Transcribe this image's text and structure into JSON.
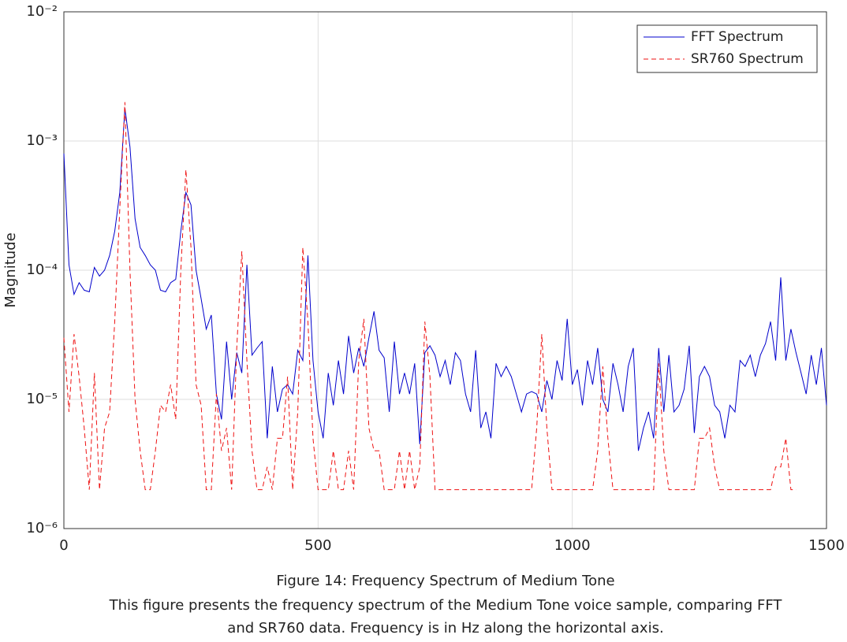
{
  "chart_data": {
    "type": "line",
    "ylabel": "Magnitude",
    "caption": "Figure 14: Frequency Spectrum of Medium Tone",
    "description": [
      "This figure presents the frequency spectrum of the Medium Tone voice sample, comparing FFT",
      "and SR760 data. Frequency is in Hz along the horizontal axis."
    ],
    "xlim": [
      0,
      1500
    ],
    "xticks": [
      0,
      500,
      1000,
      1500
    ],
    "ylim": [
      1e-06,
      0.01
    ],
    "yscale": "log",
    "yticks": [
      {
        "value": 1e-06,
        "label": "10⁻⁶"
      },
      {
        "value": 1e-05,
        "label": "10⁻⁵"
      },
      {
        "value": 0.0001,
        "label": "10⁻⁴"
      },
      {
        "value": 0.001,
        "label": "10⁻³"
      },
      {
        "value": 0.01,
        "label": "10⁻²"
      }
    ],
    "grid": true,
    "legend": "upper right",
    "x": [
      0,
      10,
      20,
      30,
      40,
      50,
      60,
      70,
      80,
      90,
      100,
      110,
      120,
      130,
      140,
      150,
      160,
      170,
      180,
      190,
      200,
      210,
      220,
      230,
      240,
      250,
      260,
      270,
      280,
      290,
      300,
      310,
      320,
      330,
      340,
      350,
      360,
      370,
      380,
      390,
      400,
      410,
      420,
      430,
      440,
      450,
      460,
      470,
      480,
      490,
      500,
      510,
      520,
      530,
      540,
      550,
      560,
      570,
      580,
      590,
      600,
      610,
      620,
      630,
      640,
      650,
      660,
      670,
      680,
      690,
      700,
      710,
      720,
      730,
      740,
      750,
      760,
      770,
      780,
      790,
      800,
      810,
      820,
      830,
      840,
      850,
      860,
      870,
      880,
      890,
      900,
      910,
      920,
      930,
      940,
      950,
      960,
      970,
      980,
      990,
      1000,
      1010,
      1020,
      1030,
      1040,
      1050,
      1060,
      1070,
      1080,
      1090,
      1100,
      1110,
      1120,
      1130,
      1140,
      1150,
      1160,
      1170,
      1180,
      1190,
      1200,
      1210,
      1220,
      1230,
      1240,
      1250,
      1260,
      1270,
      1280,
      1290,
      1300,
      1310,
      1320,
      1330,
      1340,
      1350,
      1360,
      1370,
      1380,
      1390,
      1400,
      1410,
      1420,
      1430,
      1440,
      1450,
      1460,
      1470,
      1480,
      1490,
      1500
    ],
    "series": [
      {
        "name": "FFT Spectrum",
        "color": "#0000cc",
        "dashed": false,
        "values": [
          0.0008,
          0.00011,
          6.5e-05,
          8e-05,
          7e-05,
          6.8e-05,
          0.000105,
          9e-05,
          0.0001,
          0.00013,
          0.0002,
          0.0004,
          0.0018,
          0.0009,
          0.00025,
          0.00015,
          0.00013,
          0.00011,
          0.0001,
          7e-05,
          6.8e-05,
          8e-05,
          8.5e-05,
          0.0002,
          0.0004,
          0.00032,
          0.0001,
          6e-05,
          3.5e-05,
          4.5e-05,
          1.1e-05,
          7e-06,
          2.8e-05,
          1e-05,
          2.3e-05,
          1.6e-05,
          0.00011,
          2.2e-05,
          2.5e-05,
          2.8e-05,
          5e-06,
          1.8e-05,
          8e-06,
          1.2e-05,
          1.3e-05,
          1.1e-05,
          2.4e-05,
          2e-05,
          0.00013,
          2e-05,
          8e-06,
          5e-06,
          1.6e-05,
          9e-06,
          2e-05,
          1.1e-05,
          3.1e-05,
          1.6e-05,
          2.5e-05,
          1.8e-05,
          3e-05,
          4.8e-05,
          2.4e-05,
          2.1e-05,
          8e-06,
          2.8e-05,
          1.1e-05,
          1.6e-05,
          1.1e-05,
          1.9e-05,
          4.5e-06,
          2.3e-05,
          2.6e-05,
          2.2e-05,
          1.5e-05,
          2e-05,
          1.3e-05,
          2.3e-05,
          2e-05,
          1.1e-05,
          8e-06,
          2.4e-05,
          6e-06,
          8e-06,
          5e-06,
          1.9e-05,
          1.5e-05,
          1.8e-05,
          1.5e-05,
          1.1e-05,
          8e-06,
          1.1e-05,
          1.15e-05,
          1.1e-05,
          8e-06,
          1.4e-05,
          1e-05,
          2e-05,
          1.4e-05,
          4.2e-05,
          1.3e-05,
          1.7e-05,
          9e-06,
          2e-05,
          1.3e-05,
          2.5e-05,
          1e-05,
          8e-06,
          1.9e-05,
          1.3e-05,
          8e-06,
          1.8e-05,
          2.5e-05,
          4e-06,
          6e-06,
          8e-06,
          5e-06,
          2.5e-05,
          8e-06,
          2.2e-05,
          8e-06,
          9e-06,
          1.2e-05,
          2.6e-05,
          5.5e-06,
          1.5e-05,
          1.8e-05,
          1.5e-05,
          9e-06,
          8e-06,
          5e-06,
          9e-06,
          8e-06,
          2e-05,
          1.8e-05,
          2.2e-05,
          1.5e-05,
          2.2e-05,
          2.7e-05,
          4e-05,
          2e-05,
          8.8e-05,
          2e-05,
          3.5e-05,
          2.3e-05,
          1.6e-05,
          1.1e-05,
          2.2e-05,
          1.3e-05,
          2.5e-05,
          9e-06
        ]
      },
      {
        "name": "SR760 Spectrum",
        "color": "#ee1111",
        "dashed": true,
        "values": [
          3e-05,
          8e-06,
          3.2e-05,
          1.5e-05,
          6e-06,
          2e-06,
          1.6e-05,
          2e-06,
          6e-06,
          8e-06,
          4e-05,
          0.0003,
          0.002,
          0.0001,
          1e-05,
          4e-06,
          2e-06,
          2e-06,
          4e-06,
          9e-06,
          8e-06,
          1.3e-05,
          7e-06,
          0.0001,
          0.0006,
          0.00015,
          1.3e-05,
          9e-06,
          2e-06,
          2e-06,
          1.1e-05,
          4e-06,
          6e-06,
          2e-06,
          2.5e-05,
          0.00014,
          2e-05,
          4e-06,
          2e-06,
          2e-06,
          3e-06,
          2e-06,
          5e-06,
          5e-06,
          1.5e-05,
          2e-06,
          8e-06,
          0.00015,
          4e-05,
          5e-06,
          2e-06,
          2e-06,
          2e-06,
          4e-06,
          2e-06,
          2e-06,
          4e-06,
          2e-06,
          2e-05,
          4.2e-05,
          6e-06,
          4e-06,
          4e-06,
          2e-06,
          2e-06,
          2e-06,
          4e-06,
          2e-06,
          4e-06,
          2e-06,
          3e-06,
          4e-05,
          1.5e-05,
          2e-06,
          2e-06,
          2e-06,
          2e-06,
          2e-06,
          2e-06,
          2e-06,
          2e-06,
          2e-06,
          2e-06,
          2e-06,
          2e-06,
          2e-06,
          2e-06,
          2e-06,
          2e-06,
          2e-06,
          2e-06,
          2e-06,
          2e-06,
          6e-06,
          3.2e-05,
          6e-06,
          2e-06,
          2e-06,
          2e-06,
          2e-06,
          2e-06,
          2e-06,
          2e-06,
          2e-06,
          2e-06,
          4e-06,
          1.8e-05,
          5e-06,
          2e-06,
          2e-06,
          2e-06,
          2e-06,
          2e-06,
          2e-06,
          2e-06,
          2e-06,
          2e-06,
          1.9e-05,
          4e-06,
          2e-06,
          2e-06,
          2e-06,
          2e-06,
          2e-06,
          2e-06,
          5e-06,
          5e-06,
          6e-06,
          3e-06,
          2e-06,
          2e-06,
          2e-06,
          2e-06,
          2e-06,
          2e-06,
          2e-06,
          2e-06,
          2e-06,
          2e-06,
          2e-06,
          3e-06,
          3e-06,
          5e-06,
          2e-06,
          2e-06,
          null,
          null,
          null,
          null,
          null,
          null
        ]
      }
    ]
  }
}
